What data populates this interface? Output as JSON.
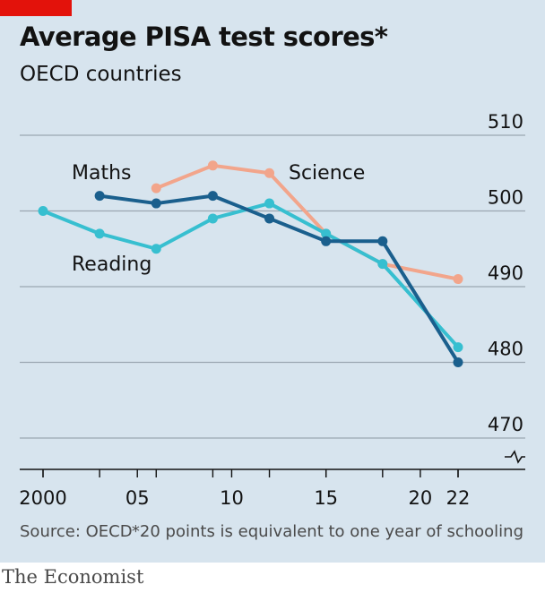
{
  "title": "Average PISA test scores*",
  "subtitle": "OECD countries",
  "source": "Source: OECD",
  "footnote": "*20 points is equivalent to one year of schooling",
  "brand": "The Economist",
  "colors": {
    "background": "#d7e4ee",
    "brand_red": "#e3120b",
    "maths": "#1a5f8d",
    "reading": "#37bfd0",
    "science": "#f2a58b",
    "grid": "#9aa6b1",
    "axis": "#121212"
  },
  "chart_data": {
    "type": "line",
    "title": "Average PISA test scores*",
    "subtitle": "OECD countries",
    "ylim": [
      470,
      510
    ],
    "yticks": [
      470,
      480,
      490,
      500,
      510
    ],
    "ytick_labels": [
      "470",
      "480",
      "490",
      "500",
      "510"
    ],
    "y_axis_break": true,
    "xlim": [
      1999.5,
      2023
    ],
    "xticks": [
      2000,
      2005,
      2010,
      2015,
      2020,
      2022
    ],
    "xtick_labels": [
      "2000",
      "05",
      "10",
      "15",
      "20",
      "22"
    ],
    "minor_xticks": [
      2000,
      2003,
      2006,
      2009,
      2012,
      2015,
      2018,
      2022
    ],
    "grid": true,
    "series": [
      {
        "name": "Science",
        "color": "#f2a58b",
        "x": [
          2006,
          2009,
          2012,
          2015,
          2018,
          2022
        ],
        "y": [
          503,
          506,
          505,
          497,
          493,
          491
        ]
      },
      {
        "name": "Reading",
        "color": "#37bfd0",
        "x": [
          2000,
          2003,
          2006,
          2009,
          2012,
          2015,
          2018,
          2022
        ],
        "y": [
          500,
          497,
          495,
          499,
          501,
          497,
          493,
          482
        ]
      },
      {
        "name": "Maths",
        "color": "#1a5f8d",
        "x": [
          2003,
          2006,
          2009,
          2012,
          2015,
          2018,
          2022
        ],
        "y": [
          502,
          501,
          502,
          499,
          496,
          496,
          480
        ]
      }
    ]
  }
}
